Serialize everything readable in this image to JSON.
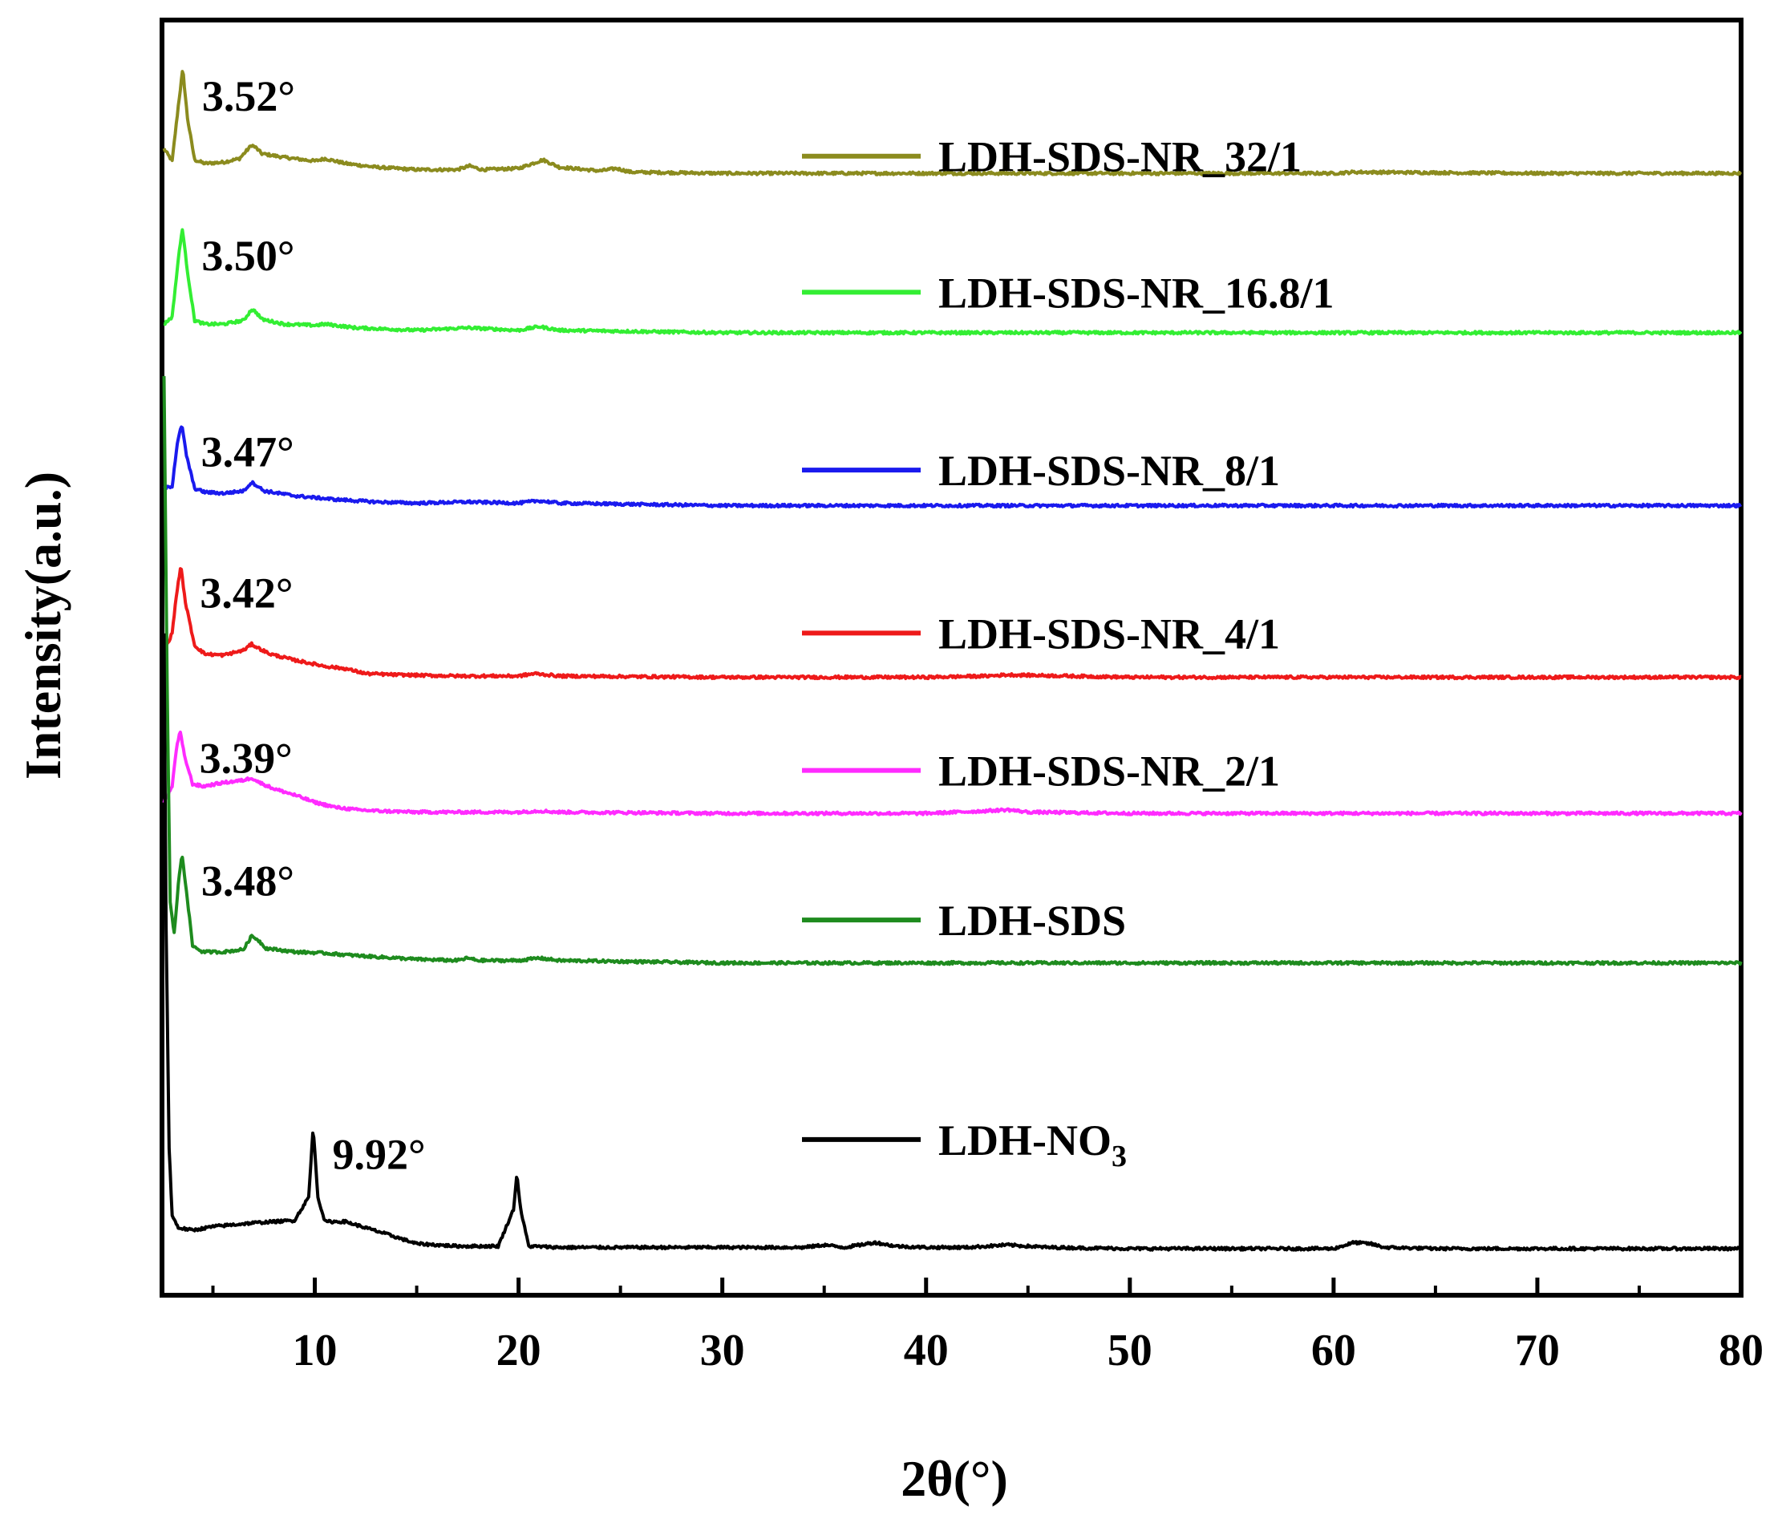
{
  "chart_data": {
    "type": "line",
    "title": "",
    "xlabel": "2θ(°)",
    "ylabel": "Intensity(a.u.)",
    "xlim": [
      2.5,
      80
    ],
    "xticks": [
      10,
      20,
      30,
      40,
      50,
      60,
      70,
      80
    ],
    "minor_xtick_step": 5,
    "y_ticks_shown": false,
    "grid": false,
    "legend_placement": "inline, right of each curve",
    "series": [
      {
        "name": "LDH-SDS-NR_32/1",
        "color": "#8b8b1e",
        "baseline": 91.5,
        "x": [
          2.6,
          3.0,
          3.3,
          3.52,
          3.75,
          4.1,
          4.6,
          5.5,
          6.3,
          6.9,
          7.1,
          7.4,
          8.5,
          10.0,
          10.5,
          11.5,
          13.0,
          15.0,
          17.0,
          17.6,
          18.2,
          20.0,
          21.2,
          22.0,
          24.0,
          24.8,
          25.5,
          30.0,
          40.0,
          50.0,
          60.0,
          61.0,
          70.0,
          80.0
        ],
        "y": [
          93.5,
          92.5,
          97.0,
          100.0,
          96.0,
          92.6,
          92.3,
          92.4,
          92.7,
          93.8,
          93.6,
          93.1,
          92.8,
          92.5,
          92.7,
          92.3,
          92.0,
          91.8,
          91.8,
          92.1,
          91.8,
          91.9,
          92.6,
          92.0,
          91.7,
          91.9,
          91.6,
          91.5,
          91.5,
          91.5,
          91.5,
          91.6,
          91.5,
          91.5
        ]
      },
      {
        "name": "LDH-SDS-NR_16.8/1",
        "color": "#33ee33",
        "baseline": 78.5,
        "x": [
          2.6,
          3.0,
          3.3,
          3.5,
          3.75,
          4.1,
          4.6,
          5.5,
          6.5,
          6.9,
          7.1,
          7.4,
          8.5,
          10.0,
          10.5,
          12.0,
          15.0,
          17.5,
          20.0,
          21.0,
          22.0,
          30.0,
          40.0,
          50.0,
          60.0,
          70.0,
          80.0
        ],
        "y": [
          79.2,
          79.8,
          84.5,
          87.0,
          83.5,
          79.5,
          79.2,
          79.2,
          79.5,
          80.4,
          80.2,
          79.6,
          79.2,
          79.1,
          79.2,
          78.9,
          78.7,
          78.9,
          78.7,
          79.0,
          78.7,
          78.5,
          78.5,
          78.5,
          78.5,
          78.5,
          78.5
        ]
      },
      {
        "name": "LDH-SDS-NR_8/1",
        "color": "#1a1aee",
        "baseline": 64.4,
        "x": [
          2.6,
          3.0,
          3.25,
          3.47,
          3.7,
          4.1,
          4.6,
          5.5,
          6.5,
          6.9,
          7.1,
          7.5,
          9.0,
          11.0,
          13.0,
          15.0,
          17.5,
          20.0,
          21.0,
          22.0,
          30.0,
          40.0,
          50.0,
          60.0,
          70.0,
          80.0
        ],
        "y": [
          65.8,
          66.0,
          69.5,
          71.0,
          68.5,
          65.8,
          65.5,
          65.4,
          65.6,
          66.3,
          66.1,
          65.6,
          65.2,
          64.9,
          64.7,
          64.6,
          64.7,
          64.6,
          64.8,
          64.6,
          64.4,
          64.4,
          64.4,
          64.4,
          64.4,
          64.4
        ]
      },
      {
        "name": "LDH-SDS-NR_4/1",
        "color": "#ee1a1a",
        "baseline": 50.4,
        "x": [
          2.6,
          3.0,
          3.2,
          3.42,
          3.65,
          4.1,
          4.6,
          5.5,
          6.5,
          6.9,
          7.2,
          7.8,
          9.0,
          10.5,
          11.5,
          12.5,
          14.0,
          17.0,
          20.0,
          20.8,
          22.0,
          30.0,
          40.0,
          43.0,
          44.0,
          50.0,
          60.0,
          70.0,
          80.0
        ],
        "y": [
          52.5,
          54.0,
          57.0,
          59.5,
          56.5,
          53.0,
          52.3,
          52.2,
          52.6,
          53.1,
          52.8,
          52.3,
          51.8,
          51.3,
          51.1,
          50.7,
          50.6,
          50.5,
          50.5,
          50.7,
          50.5,
          50.4,
          50.4,
          50.5,
          50.6,
          50.4,
          50.4,
          50.4,
          50.4
        ]
      },
      {
        "name": "LDH-SDS-NR_2/1",
        "color": "#ff2bff",
        "baseline": 39.3,
        "x": [
          2.6,
          3.0,
          3.2,
          3.39,
          3.6,
          4.0,
          4.5,
          5.5,
          6.5,
          6.9,
          7.3,
          8.0,
          9.0,
          10.0,
          11.0,
          12.0,
          13.0,
          15.0,
          17.0,
          20.0,
          21.0,
          22.0,
          30.0,
          40.0,
          43.0,
          44.0,
          45.0,
          50.0,
          60.0,
          70.0,
          80.0
        ],
        "y": [
          40.2,
          41.5,
          44.5,
          46.0,
          44.0,
          41.7,
          41.5,
          41.8,
          42.0,
          42.2,
          41.8,
          41.3,
          40.8,
          40.2,
          39.8,
          39.6,
          39.5,
          39.4,
          39.4,
          39.4,
          39.5,
          39.4,
          39.3,
          39.3,
          39.5,
          39.6,
          39.4,
          39.3,
          39.3,
          39.3,
          39.3
        ]
      },
      {
        "name": "LDH-SDS",
        "color": "#1e8b1e",
        "baseline": 27.1,
        "x": [
          2.6,
          2.75,
          2.9,
          3.1,
          3.3,
          3.48,
          3.7,
          4.0,
          4.5,
          5.5,
          6.5,
          6.9,
          7.2,
          7.6,
          9.0,
          10.5,
          12.0,
          15.0,
          17.0,
          17.5,
          18.0,
          20.0,
          21.0,
          22.0,
          30.0,
          40.0,
          50.0,
          60.0,
          70.0,
          80.0
        ],
        "y": [
          75.0,
          50.0,
          32.0,
          29.5,
          33.5,
          36.0,
          33.0,
          28.5,
          28.0,
          28.0,
          28.2,
          29.3,
          29.0,
          28.3,
          28.0,
          27.9,
          27.7,
          27.4,
          27.3,
          27.5,
          27.3,
          27.3,
          27.5,
          27.3,
          27.1,
          27.1,
          27.1,
          27.1,
          27.1,
          27.1
        ]
      },
      {
        "name": "LDH-NO3",
        "color": "#000000",
        "baseline": 3.8,
        "x": [
          2.6,
          2.7,
          2.85,
          3.0,
          3.3,
          4.0,
          5.0,
          7.0,
          9.0,
          9.7,
          9.92,
          10.15,
          10.5,
          11.5,
          12.5,
          13.5,
          15.0,
          17.0,
          19.0,
          19.75,
          19.92,
          20.1,
          20.5,
          22.0,
          30.0,
          34.0,
          35.0,
          36.0,
          37.5,
          38.5,
          40.0,
          42.0,
          44.0,
          46.0,
          50.0,
          60.0,
          61.0,
          61.8,
          62.5,
          65.0,
          70.0,
          80.0
        ],
        "y": [
          54.0,
          30.0,
          12.0,
          6.5,
          5.5,
          5.3,
          5.6,
          5.9,
          6.1,
          8.0,
          13.7,
          8.0,
          6.0,
          6.0,
          5.5,
          5.0,
          4.2,
          4.0,
          4.0,
          7.0,
          9.9,
          7.0,
          4.0,
          3.9,
          3.9,
          3.9,
          4.1,
          3.9,
          4.3,
          4.0,
          3.9,
          3.9,
          4.1,
          3.9,
          3.8,
          3.8,
          4.3,
          4.2,
          3.9,
          3.8,
          3.8,
          3.8
        ]
      }
    ],
    "legend_entries": [
      {
        "text": "LDH-SDS-NR_32/1",
        "color": "#8b8b1e",
        "level": 92.9
      },
      {
        "text": "LDH-SDS-NR_16.8/1",
        "color": "#33ee33",
        "level": 81.8
      },
      {
        "text": "LDH-SDS-NR_8/1",
        "color": "#1a1aee",
        "level": 67.3
      },
      {
        "text": "LDH-SDS-NR_4/1",
        "color": "#ee1a1a",
        "level": 54.0
      },
      {
        "text": "LDH-SDS-NR_2/1",
        "color": "#ff2bff",
        "level": 42.8
      },
      {
        "text": "LDH-SDS",
        "color": "#1e8b1e",
        "level": 30.6
      },
      {
        "text_main": "LDH-NO",
        "text_sub": "3",
        "color": "#000000",
        "level": 12.7
      }
    ],
    "annotations": [
      {
        "text": "3.52°",
        "x": 3.52,
        "y": 100.0
      },
      {
        "text": "3.50°",
        "x": 3.5,
        "y": 87.0
      },
      {
        "text": "3.47°",
        "x": 3.47,
        "y": 71.0
      },
      {
        "text": "3.42°",
        "x": 3.42,
        "y": 59.5
      },
      {
        "text": "3.39°",
        "x": 3.39,
        "y": 46.0
      },
      {
        "text": "3.48°",
        "x": 3.48,
        "y": 36.0
      },
      {
        "text": "9.92°",
        "x": 9.92,
        "y": 13.7
      }
    ]
  }
}
